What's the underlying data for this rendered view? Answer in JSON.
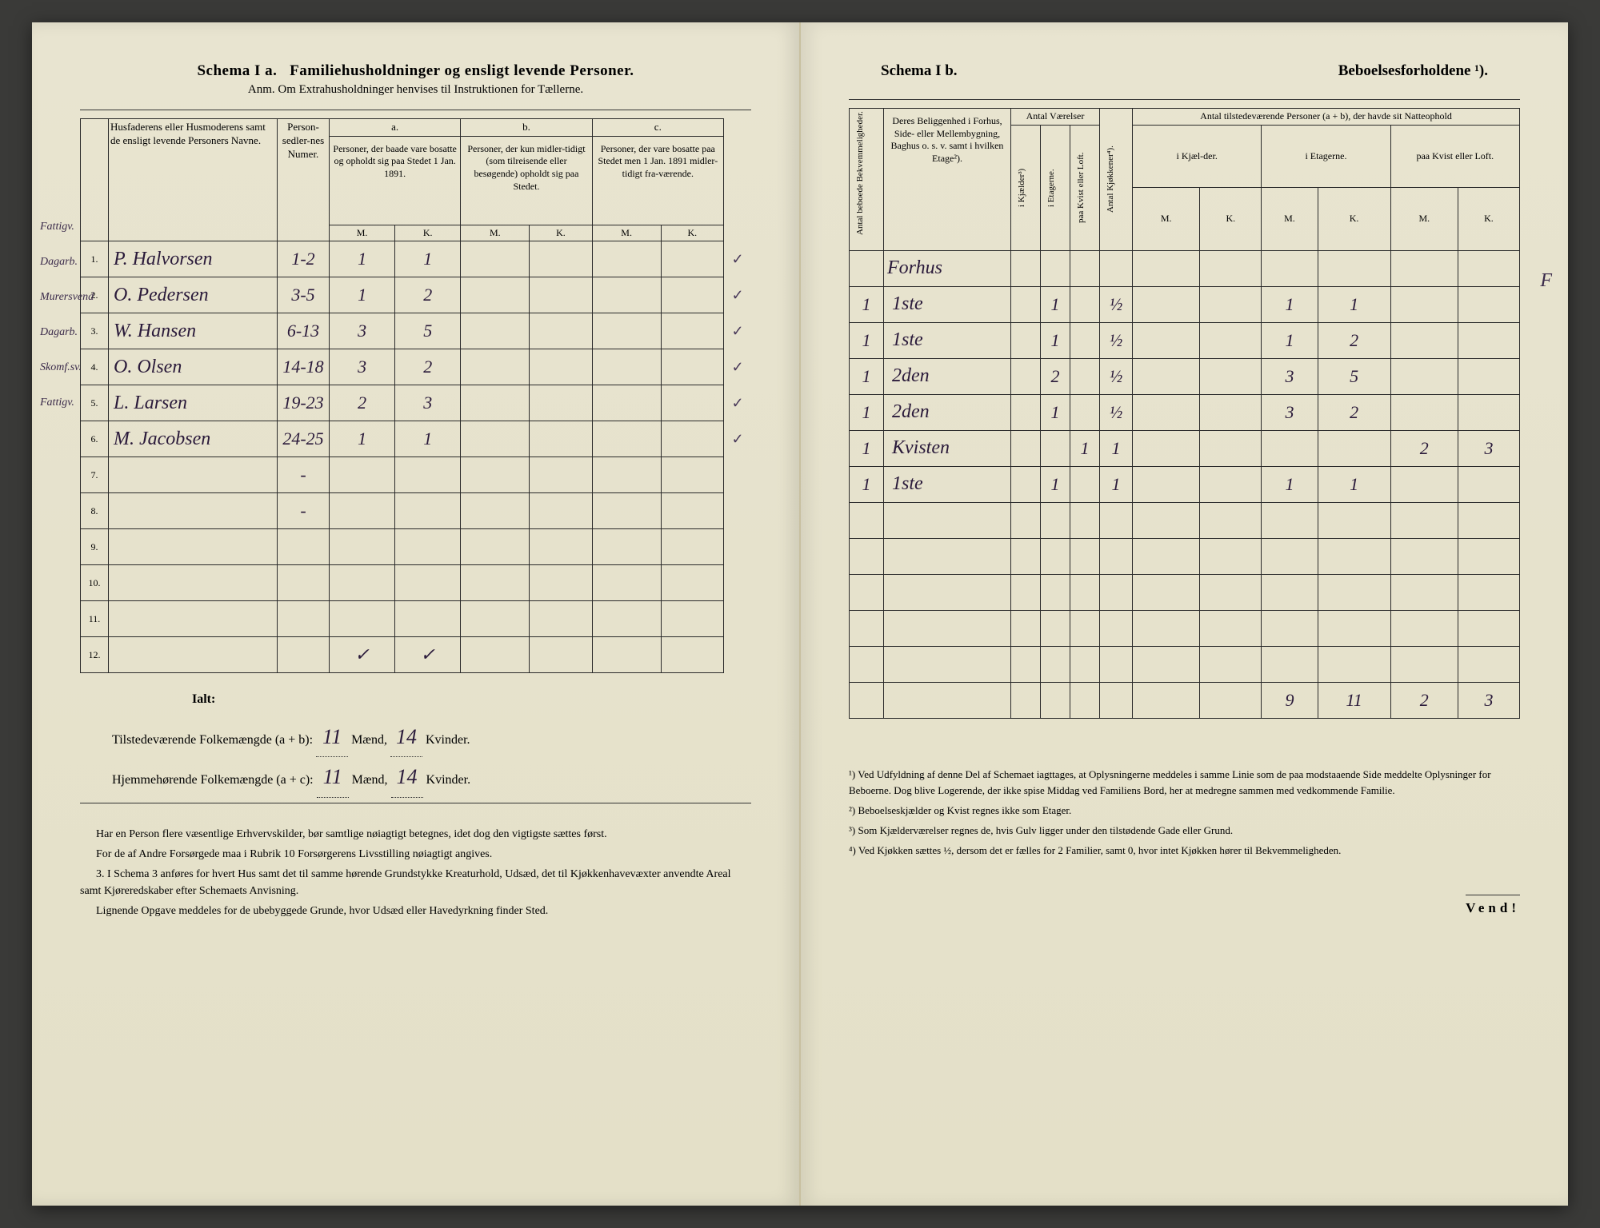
{
  "left_page": {
    "schema_title": "Schema I a.",
    "schema_subtitle": "Familiehusholdninger og ensligt levende Personer.",
    "anm_line": "Anm. Om Extrahusholdninger henvises til Instruktionen for Tællerne.",
    "headers": {
      "name_col": "Husfaderens eller Husmoderens samt de ensligt levende Personers Navne.",
      "person_num": "Person-sedler-nes Numer.",
      "col_a_label": "a.",
      "col_a": "Personer, der baade vare bosatte og opholdt sig paa Stedet 1 Jan. 1891.",
      "col_b_label": "b.",
      "col_b": "Personer, der kun midler-tidigt (som tilreisende eller besøgende) opholdt sig paa Stedet.",
      "col_c_label": "c.",
      "col_c": "Personer, der vare bosatte paa Stedet men 1 Jan. 1891 midler-tidigt fra-værende.",
      "m": "M.",
      "k": "K."
    },
    "margin_notes": [
      "Fattigv.",
      "Dagarb.",
      "Murersvend",
      "Dagarb.",
      "Skomf.sv.",
      "Fattigv."
    ],
    "rows": [
      {
        "num": "1.",
        "name": "P. Halvorsen",
        "pn": "1-2",
        "am": "1",
        "ak": "1",
        "bm": "",
        "bk": "",
        "cm": "",
        "ck": "",
        "check": "✓"
      },
      {
        "num": "2.",
        "name": "O. Pedersen",
        "pn": "3-5",
        "am": "1",
        "ak": "2",
        "bm": "",
        "bk": "",
        "cm": "",
        "ck": "",
        "check": "✓"
      },
      {
        "num": "3.",
        "name": "W. Hansen",
        "pn": "6-13",
        "am": "3",
        "ak": "5",
        "bm": "",
        "bk": "",
        "cm": "",
        "ck": "",
        "check": "✓"
      },
      {
        "num": "4.",
        "name": "O. Olsen",
        "pn": "14-18",
        "am": "3",
        "ak": "2",
        "bm": "",
        "bk": "",
        "cm": "",
        "ck": "",
        "check": "✓"
      },
      {
        "num": "5.",
        "name": "L. Larsen",
        "pn": "19-23",
        "am": "2",
        "ak": "3",
        "bm": "",
        "bk": "",
        "cm": "",
        "ck": "",
        "check": "✓"
      },
      {
        "num": "6.",
        "name": "M. Jacobsen",
        "pn": "24-25",
        "am": "1",
        "ak": "1",
        "bm": "",
        "bk": "",
        "cm": "",
        "ck": "",
        "check": "✓"
      },
      {
        "num": "7.",
        "name": "",
        "pn": "-",
        "am": "",
        "ak": "",
        "bm": "",
        "bk": "",
        "cm": "",
        "ck": "",
        "check": ""
      },
      {
        "num": "8.",
        "name": "",
        "pn": "-",
        "am": "",
        "ak": "",
        "bm": "",
        "bk": "",
        "cm": "",
        "ck": "",
        "check": ""
      },
      {
        "num": "9.",
        "name": "",
        "pn": "",
        "am": "",
        "ak": "",
        "bm": "",
        "bk": "",
        "cm": "",
        "ck": "",
        "check": ""
      },
      {
        "num": "10.",
        "name": "",
        "pn": "",
        "am": "",
        "ak": "",
        "bm": "",
        "bk": "",
        "cm": "",
        "ck": "",
        "check": ""
      },
      {
        "num": "11.",
        "name": "",
        "pn": "",
        "am": "",
        "ak": "",
        "bm": "",
        "bk": "",
        "cm": "",
        "ck": "",
        "check": ""
      },
      {
        "num": "12.",
        "name": "",
        "pn": "",
        "am": "✓",
        "ak": "✓",
        "bm": "",
        "bk": "",
        "cm": "",
        "ck": "",
        "check": ""
      }
    ],
    "ialt_label": "Ialt:",
    "total_present_label": "Tilstedeværende Folkemængde (a + b):",
    "total_home_label": "Hjemmehørende Folkemængde (a + c):",
    "maend_label": "Mænd,",
    "kvinder_label": "Kvinder.",
    "total_present_m": "11",
    "total_present_k": "14",
    "total_home_m": "11",
    "total_home_k": "14",
    "footnotes": [
      "Har en Person flere væsentlige Erhvervskilder, bør samtlige nøiagtigt betegnes, idet dog den vigtigste sættes først.",
      "For de af Andre Forsørgede maa i Rubrik 10 Forsørgerens Livsstilling nøiagtigt angives.",
      "3. I Schema 3 anføres for hvert Hus samt det til samme hørende Grundstykke Kreaturhold, Udsæd, det til Kjøkkenhavevæxter anvendte Areal samt Kjøreredskaber efter Schemaets Anvisning.",
      "Lignende Opgave meddeles for de ubebyggede Grunde, hvor Udsæd eller Havedyrkning finder Sted."
    ]
  },
  "right_page": {
    "schema_title": "Schema I b.",
    "schema_subtitle": "Beboelsesforholdene ¹).",
    "headers": {
      "antal_beboede": "Antal beboede Bekvemmeligheder.",
      "beliggenhed": "Deres Beliggenhed i Forhus, Side- eller Mellembygning, Baghus o. s. v. samt i hvilken Etage²).",
      "antal_vaerelser": "Antal Værelser",
      "i_kjaelder": "i Kjælder³)",
      "i_etagerne": "i Etagerne.",
      "paa_kvist": "paa Kvist eller Loft.",
      "antal_kjokkener": "Antal Kjøkkener⁴).",
      "antal_personer": "Antal tilstedeværende Personer (a + b), der havde sit Natteophold",
      "i_kjael_der": "i Kjæl-der.",
      "i_etagerne2": "i Etagerne.",
      "paa_kvist2": "paa Kvist eller Loft.",
      "m": "M.",
      "k": "K."
    },
    "forhus_label": "Forhus",
    "rows": [
      {
        "ab": "1",
        "loc": "1ste",
        "vk": "",
        "ve": "1",
        "vl": "",
        "kj": "½",
        "nkm": "",
        "nkk": "",
        "nem": "1",
        "nek": "1",
        "nlm": "",
        "nlk": ""
      },
      {
        "ab": "1",
        "loc": "1ste",
        "vk": "",
        "ve": "1",
        "vl": "",
        "kj": "½",
        "nkm": "",
        "nkk": "",
        "nem": "1",
        "nek": "2",
        "nlm": "",
        "nlk": ""
      },
      {
        "ab": "1",
        "loc": "2den",
        "vk": "",
        "ve": "2",
        "vl": "",
        "kj": "½",
        "nkm": "",
        "nkk": "",
        "nem": "3",
        "nek": "5",
        "nlm": "",
        "nlk": ""
      },
      {
        "ab": "1",
        "loc": "2den",
        "vk": "",
        "ve": "1",
        "vl": "",
        "kj": "½",
        "nkm": "",
        "nkk": "",
        "nem": "3",
        "nek": "2",
        "nlm": "",
        "nlk": ""
      },
      {
        "ab": "1",
        "loc": "Kvisten",
        "vk": "",
        "ve": "",
        "vl": "1",
        "kj": "1",
        "nkm": "",
        "nkk": "",
        "nem": "",
        "nek": "",
        "nlm": "2",
        "nlk": "3"
      },
      {
        "ab": "1",
        "loc": "1ste",
        "vk": "",
        "ve": "1",
        "vl": "",
        "kj": "1",
        "nkm": "",
        "nkk": "",
        "nem": "1",
        "nek": "1",
        "nlm": "",
        "nlk": ""
      }
    ],
    "sums": {
      "nem": "9",
      "nek": "11",
      "nlm": "2",
      "nlk": "3"
    },
    "footnotes": [
      "¹) Ved Udfyldning af denne Del af Schemaet iagttages, at Oplysningerne meddeles i samme Linie som de paa modstaaende Side meddelte Oplysninger for Beboerne. Dog blive Logerende, der ikke spise Middag ved Familiens Bord, her at medregne sammen med vedkommende Familie.",
      "²) Beboelseskjælder og Kvist regnes ikke som Etager.",
      "³) Som Kjælderværelser regnes de, hvis Gulv ligger under den tilstødende Gade eller Grund.",
      "⁴) Ved Kjøkken sættes ½, dersom det er fælles for 2 Familier, samt 0, hvor intet Kjøkken hører til Bekvemmeligheden."
    ],
    "vend": "Vend!",
    "margin_f": "F"
  },
  "colors": {
    "paper": "#e6e2cc",
    "ink": "#2a2a2a",
    "handwriting": "#2a1a3a",
    "border": "#333"
  }
}
